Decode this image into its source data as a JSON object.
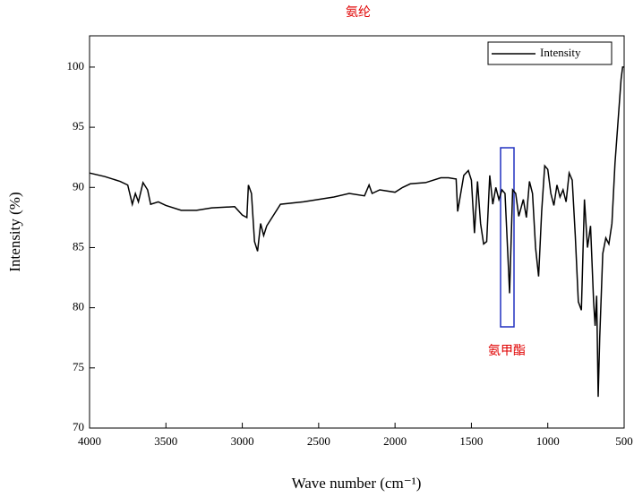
{
  "chart_data": {
    "type": "line",
    "title": "氨纶",
    "x_label": "Wave number (cm⁻¹)",
    "y_label": "Intensity (%)",
    "annotation": "氨甲酯",
    "xlim": [
      4000,
      500
    ],
    "ylim": [
      70,
      102.6
    ],
    "xticks": [
      4000,
      3500,
      3000,
      2500,
      2000,
      1500,
      1000,
      500
    ],
    "yticks": [
      70,
      75,
      80,
      85,
      90,
      95,
      100
    ],
    "legend": "top-right",
    "series": [
      {
        "name": "Intensity",
        "color": "#000000",
        "x": [
          4000,
          3900,
          3800,
          3750,
          3720,
          3700,
          3680,
          3650,
          3620,
          3600,
          3550,
          3500,
          3400,
          3300,
          3200,
          3050,
          3000,
          2970,
          2960,
          2940,
          2920,
          2900,
          2880,
          2860,
          2840,
          2750,
          2600,
          2400,
          2300,
          2200,
          2170,
          2150,
          2100,
          2000,
          1950,
          1900,
          1800,
          1700,
          1650,
          1600,
          1590,
          1550,
          1520,
          1500,
          1480,
          1460,
          1440,
          1420,
          1400,
          1380,
          1360,
          1340,
          1320,
          1300,
          1280,
          1260,
          1250,
          1230,
          1210,
          1190,
          1160,
          1140,
          1120,
          1100,
          1080,
          1060,
          1040,
          1020,
          1000,
          980,
          960,
          940,
          920,
          900,
          880,
          860,
          840,
          820,
          800,
          780,
          760,
          740,
          720,
          700,
          690,
          680,
          670,
          660,
          640,
          620,
          600,
          580,
          560,
          540,
          520,
          510,
          500
        ],
        "values": [
          91.2,
          90.9,
          90.5,
          90.2,
          88.6,
          89.5,
          88.8,
          90.4,
          89.8,
          88.6,
          88.8,
          88.5,
          88.1,
          88.1,
          88.3,
          88.4,
          87.7,
          87.5,
          90.2,
          89.5,
          85.5,
          84.7,
          87.0,
          86.0,
          86.8,
          88.6,
          88.8,
          89.2,
          89.5,
          89.3,
          90.2,
          89.5,
          89.8,
          89.6,
          90.0,
          90.3,
          90.4,
          90.8,
          90.8,
          90.7,
          88.0,
          91.0,
          91.4,
          90.6,
          86.2,
          90.5,
          87.0,
          85.3,
          85.5,
          91.0,
          88.6,
          90.0,
          89.0,
          89.8,
          89.5,
          84.0,
          81.2,
          89.8,
          89.5,
          87.6,
          89.0,
          87.5,
          90.5,
          89.5,
          85.0,
          82.6,
          88.0,
          91.8,
          91.5,
          89.5,
          88.5,
          90.2,
          89.2,
          89.8,
          88.8,
          91.2,
          90.6,
          86.0,
          80.5,
          79.8,
          89.0,
          85.0,
          86.8,
          80.5,
          78.5,
          81.0,
          72.6,
          77.5,
          84.5,
          85.8,
          85.3,
          87.0,
          92.0,
          95.5,
          99.0,
          100.0,
          100.0
        ]
      }
    ]
  }
}
